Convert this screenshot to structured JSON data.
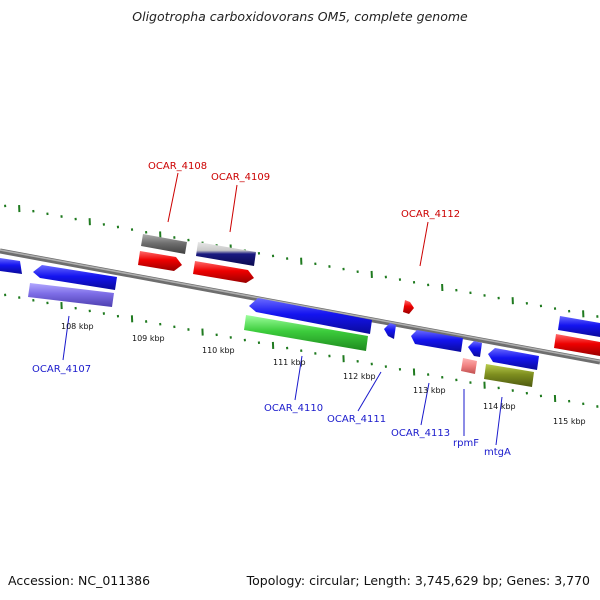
{
  "header": {
    "title": "Oligotropha carboxidovorans OM5, complete genome"
  },
  "footer": {
    "accession": "Accession: NC_011386",
    "summary": "Topology: circular; Length: 3,745,629 bp; Genes: 3,770"
  },
  "ruler": {
    "labels": [
      "108 kbp",
      "109 kbp",
      "110 kbp",
      "111 kbp",
      "112 kbp",
      "113 kbp",
      "114 kbp",
      "115 kbp"
    ]
  },
  "genes": {
    "OCAR_4107": "OCAR_4107",
    "OCAR_4108": "OCAR_4108",
    "OCAR_4109": "OCAR_4109",
    "OCAR_4110": "OCAR_4110",
    "OCAR_4111": "OCAR_4111",
    "OCAR_4112": "OCAR_4112",
    "OCAR_4113": "OCAR_4113",
    "rpmF": "rpmF",
    "mtgA": "mtgA"
  },
  "colors": {
    "forward_cds": "#e60000",
    "reverse_cds": "#1a1ae6",
    "backbone": "#808080",
    "tick": "#1f7a1f",
    "label_forward": "#cc0000",
    "label_reverse": "#1a1acc"
  }
}
